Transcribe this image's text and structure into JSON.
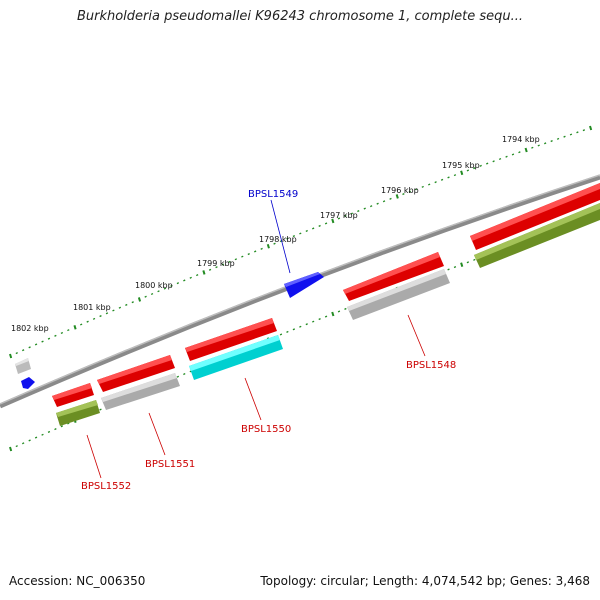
{
  "title": "Burkholderia pseudomallei K96243 chromosome 1, complete sequ...",
  "footer": {
    "accession": "Accession: NC_006350",
    "topology": "Topology: circular; Length: 4,074,542 bp; Genes: 3,468"
  },
  "colors": {
    "forward_gene": "#ff0000",
    "reverse_gene": "#1010ee",
    "pseudo_gene": "#bbbbbb",
    "highlight_gene": "#00e5e5",
    "rna_feature": "#6b8e23",
    "backbone": "#777777",
    "tick": "#228b22",
    "label_forward": "#0000cc",
    "label_reverse": "#cc0000"
  },
  "scale": {
    "ticks": [
      "1794 kbp",
      "1795 kbp",
      "1796 kbp",
      "1797 kbp",
      "1798 kbp",
      "1799 kbp",
      "1800 kbp",
      "1801 kbp",
      "1802 kbp"
    ]
  },
  "gene_labels": [
    {
      "id": "BPSL1549",
      "strand": "forward"
    },
    {
      "id": "BPSL1548",
      "strand": "reverse"
    },
    {
      "id": "BPSL1550",
      "strand": "reverse"
    },
    {
      "id": "BPSL1551",
      "strand": "reverse"
    },
    {
      "id": "BPSL1552",
      "strand": "reverse"
    }
  ]
}
